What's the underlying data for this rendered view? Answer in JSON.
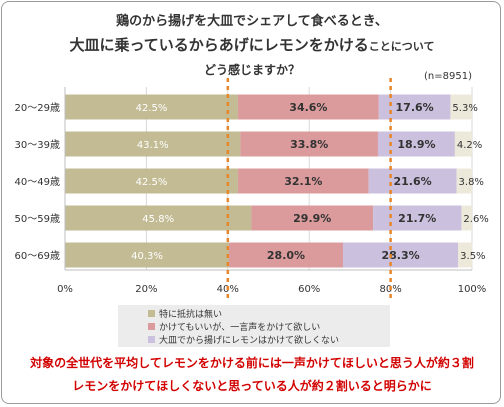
{
  "header": {
    "title_line1": "鶏のから揚げを大皿でシェアして食べるとき、",
    "title_line2_main": "大皿に乗っているからあげにレモンをかける",
    "title_line2_suffix": "ことについて",
    "title_line3": "どう感じますか？",
    "sample_size": "(n=8951)"
  },
  "colors": {
    "no_resistance": "#c2bb94",
    "ask_first": "#db9b9d",
    "do_not_want": "#cbc0dd",
    "other": "#ece8da",
    "dashed": "#e8872a",
    "note": "#d20000"
  },
  "chart_data": {
    "type": "bar",
    "orientation": "horizontal",
    "stacked": true,
    "categories": [
      "20～29歳",
      "30～39歳",
      "40～49歳",
      "50～59歳",
      "60～69歳"
    ],
    "series": [
      {
        "name": "特に抵抗は無い",
        "values": [
          42.5,
          43.1,
          42.5,
          45.8,
          40.3
        ]
      },
      {
        "name": "かけてもいいが、一言声をかけて欲しい",
        "values": [
          34.6,
          33.8,
          32.1,
          29.9,
          28.0
        ]
      },
      {
        "name": "大皿でから揚げにレモンはかけて欲しくない",
        "values": [
          17.6,
          18.9,
          21.6,
          21.7,
          28.3
        ]
      },
      {
        "name": "",
        "values": [
          5.3,
          4.2,
          3.8,
          2.6,
          3.5
        ]
      }
    ],
    "xlim": [
      0,
      100
    ],
    "xticks": [
      "0%",
      "20%",
      "40%",
      "60%",
      "80%",
      "100%"
    ],
    "reference_lines": [
      40,
      80
    ],
    "grid": true,
    "legend_position": "bottom"
  },
  "notes": {
    "line1": "対象の全世代を平均してレモンをかける前には一声かけてほしいと思う人が約３割",
    "line2": "レモンをかけてほしくないと思っている人が約２割いると明らかに"
  }
}
